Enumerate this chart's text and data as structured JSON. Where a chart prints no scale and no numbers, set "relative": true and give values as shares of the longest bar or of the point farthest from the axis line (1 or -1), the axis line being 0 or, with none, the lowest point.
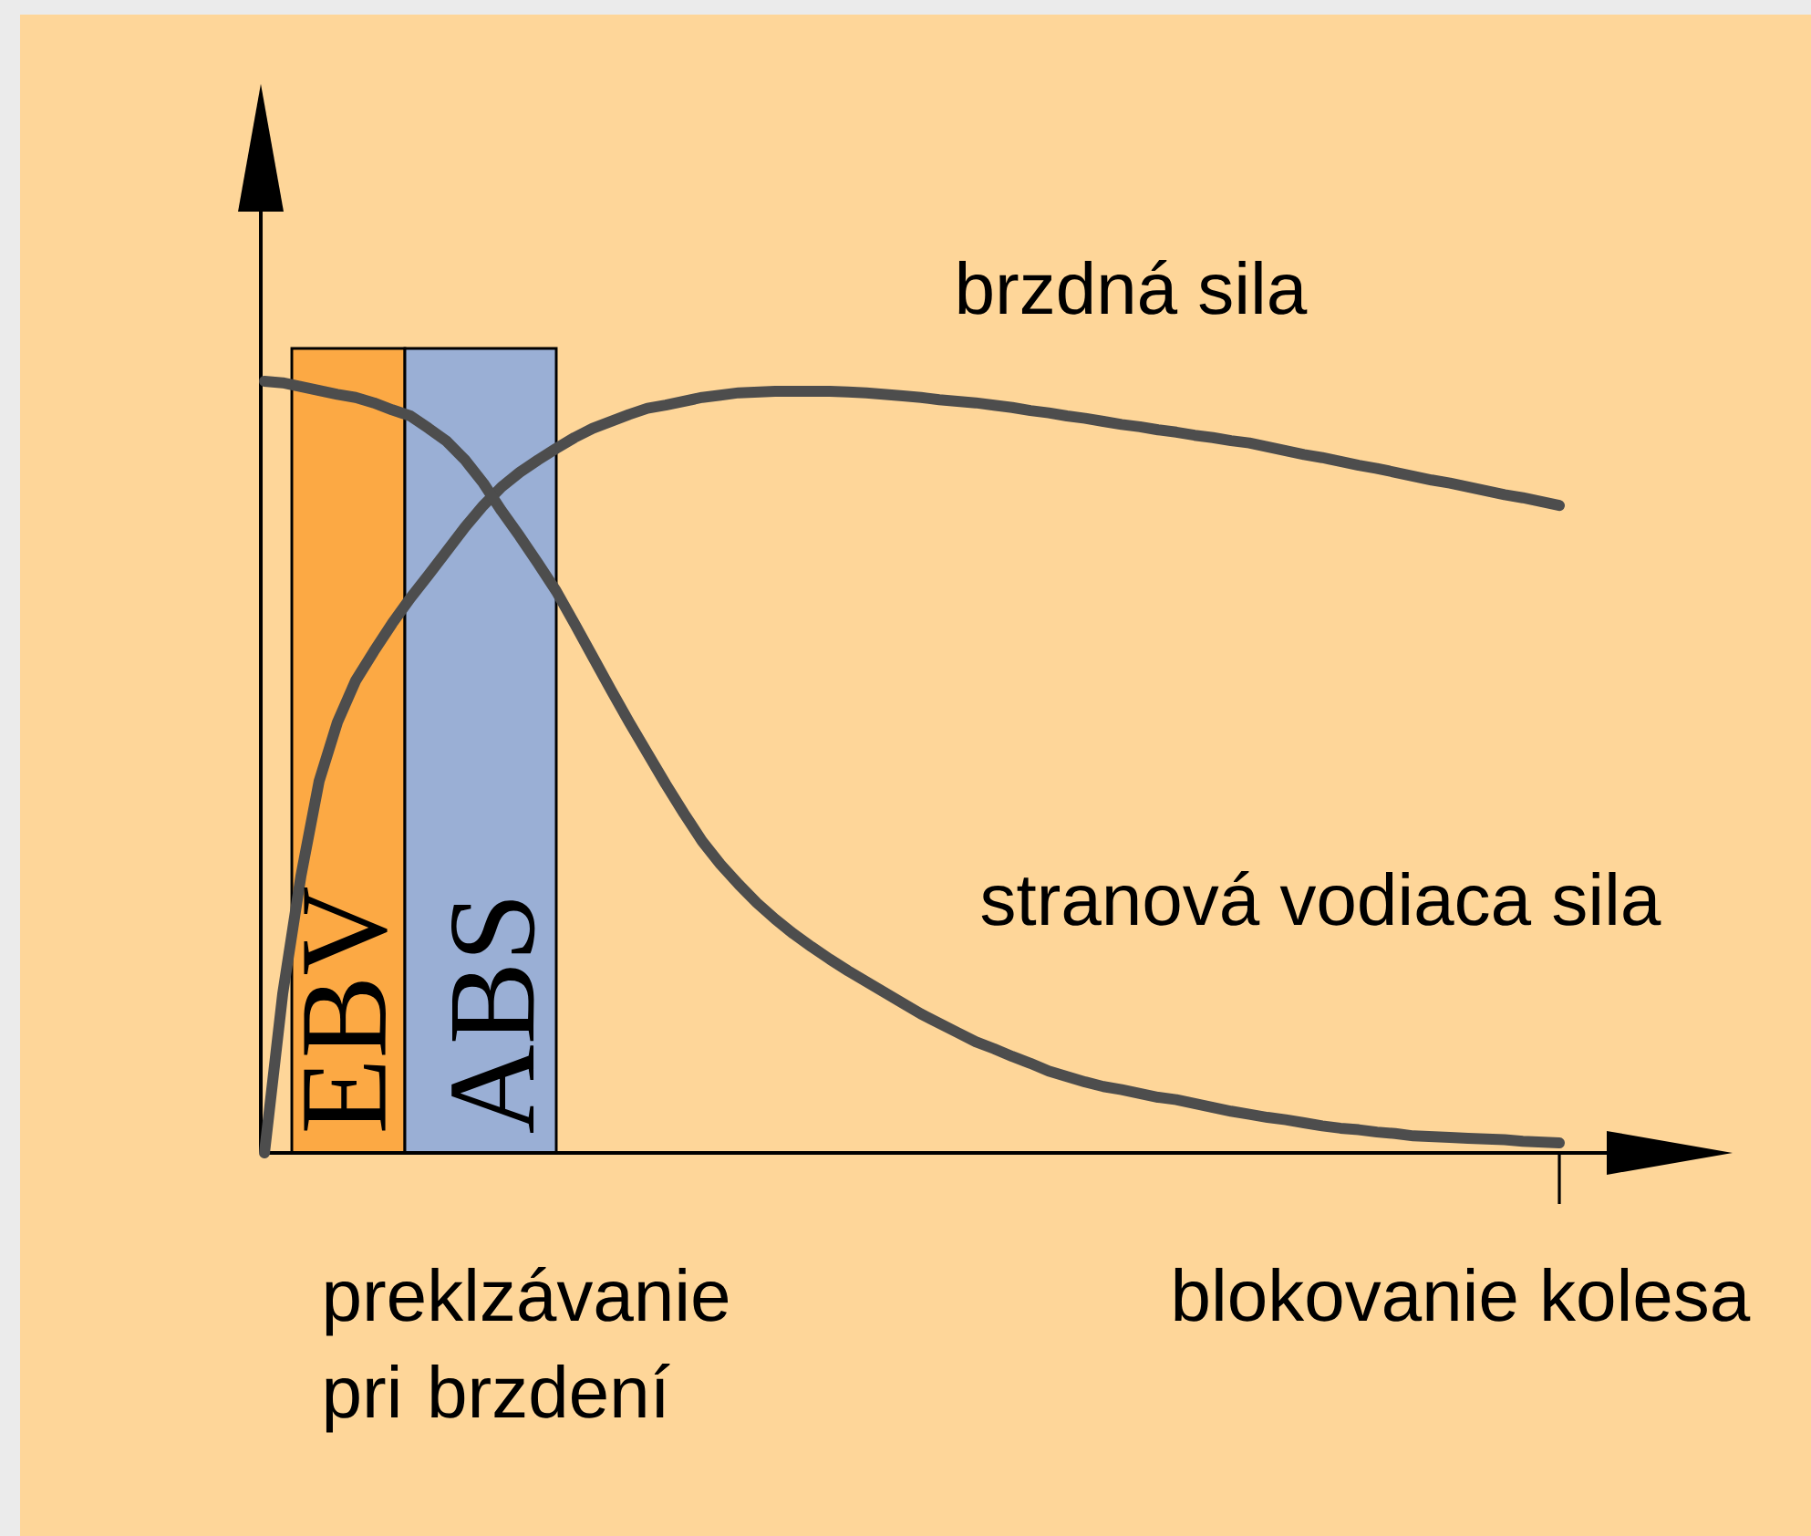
{
  "chart_data": {
    "type": "line",
    "relative": true,
    "xlabel": "preklzávanie pri brzdení",
    "annotations": [
      "EBV",
      "ABS",
      "blokovanie kolesa"
    ],
    "categories": [
      null,
      null,
      null,
      null,
      null,
      null,
      null,
      null,
      null,
      null,
      null,
      null,
      null,
      null,
      null,
      null,
      null,
      null,
      null,
      null,
      null,
      null,
      null,
      null,
      null,
      null,
      null,
      null,
      null,
      null,
      null,
      null,
      null,
      null,
      null,
      null,
      null,
      null,
      null,
      null,
      null,
      null,
      null,
      null,
      null,
      null,
      null,
      null,
      null,
      null,
      null,
      null,
      null,
      null,
      null,
      null,
      null,
      null,
      null,
      null,
      null,
      null,
      null,
      null,
      null,
      null,
      null,
      null,
      null,
      null,
      null,
      null
    ],
    "series": [
      {
        "name": "brzdná sila",
        "color": "#4d4d4d",
        "values": [
          0,
          0.206,
          0.359,
          0.482,
          0.558,
          0.612,
          0.65,
          0.686,
          0.719,
          0.749,
          0.78,
          0.811,
          0.839,
          0.863,
          0.882,
          0.898,
          0.913,
          0.927,
          0.939,
          0.948,
          0.957,
          0.965,
          0.969,
          0.974,
          0.979,
          0.982,
          0.985,
          0.986,
          0.987,
          0.987,
          0.987,
          0.987,
          0.986,
          0.985,
          0.983,
          0.981,
          0.979,
          0.976,
          0.974,
          0.972,
          0.969,
          0.966,
          0.962,
          0.959,
          0.955,
          0.952,
          0.948,
          0.944,
          0.941,
          0.937,
          0.934,
          0.93,
          0.927,
          0.923,
          0.92,
          0.915,
          0.91,
          0.905,
          0.901,
          0.896,
          0.891,
          0.887,
          0.882,
          0.877,
          0.872,
          0.868,
          0.863,
          0.858,
          0.853,
          0.849,
          0.844,
          0.839
        ]
      },
      {
        "name": "stranová vodiaca sila",
        "color": "#4d4d4d",
        "values": [
          1,
          0.998,
          0.993,
          0.988,
          0.983,
          0.979,
          0.972,
          0.963,
          0.955,
          0.939,
          0.922,
          0.898,
          0.868,
          0.832,
          0.799,
          0.764,
          0.728,
          0.686,
          0.643,
          0.6,
          0.558,
          0.518,
          0.478,
          0.44,
          0.404,
          0.374,
          0.348,
          0.324,
          0.303,
          0.284,
          0.267,
          0.251,
          0.236,
          0.222,
          0.208,
          0.194,
          0.18,
          0.168,
          0.156,
          0.144,
          0.135,
          0.125,
          0.116,
          0.106,
          0.099,
          0.092,
          0.086,
          0.082,
          0.077,
          0.072,
          0.069,
          0.064,
          0.059,
          0.054,
          0.05,
          0.046,
          0.043,
          0.039,
          0.035,
          0.032,
          0.03,
          0.027,
          0.025,
          0.022,
          0.021,
          0.02,
          0.019,
          0.018,
          0.017,
          0.015,
          0.014,
          0.013
        ]
      }
    ],
    "marker": "none",
    "line_style": "solid"
  }
}
